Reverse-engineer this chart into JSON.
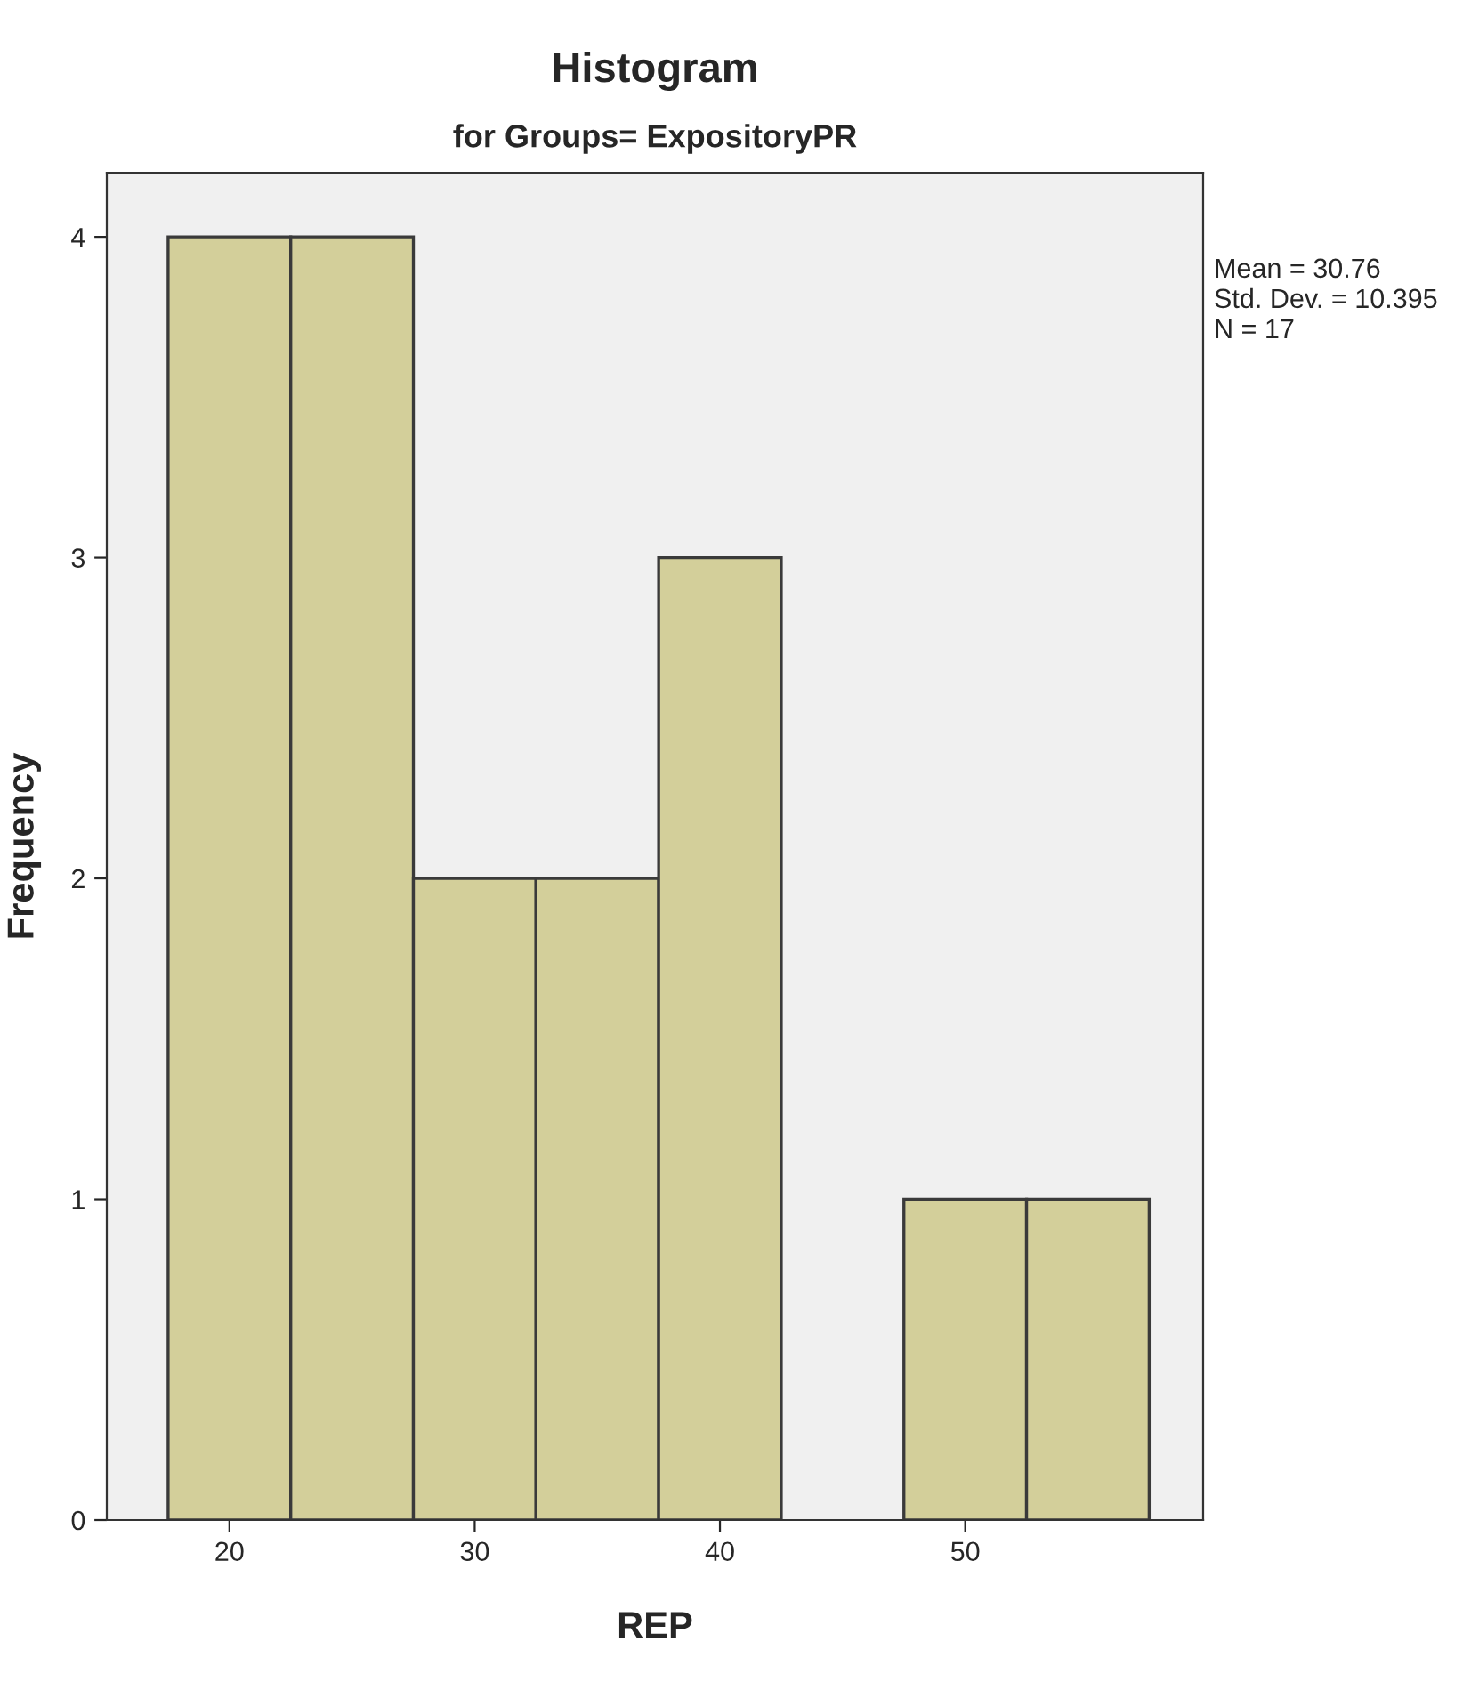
{
  "chart_data": {
    "type": "histogram",
    "title": "Histogram",
    "subtitle": "for Groups= ExpositoryPR",
    "xlabel": "REP",
    "ylabel": "Frequency",
    "bins": [
      17.5,
      22.5,
      27.5,
      32.5,
      37.5,
      42.5,
      47.5,
      52.5,
      57.5
    ],
    "values": [
      4,
      4,
      2,
      2,
      3,
      0,
      1,
      1
    ],
    "color": "#d3cf9a",
    "xlim": [
      15,
      59.7
    ],
    "xticks": [
      20,
      30,
      40,
      50
    ],
    "ylim": [
      0,
      4.2
    ],
    "yticks": [
      0,
      1,
      2,
      3,
      4
    ],
    "grid": false,
    "annotations": [
      "Mean = 30.76",
      "Std. Dev. = 10.395",
      "N = 17"
    ]
  }
}
